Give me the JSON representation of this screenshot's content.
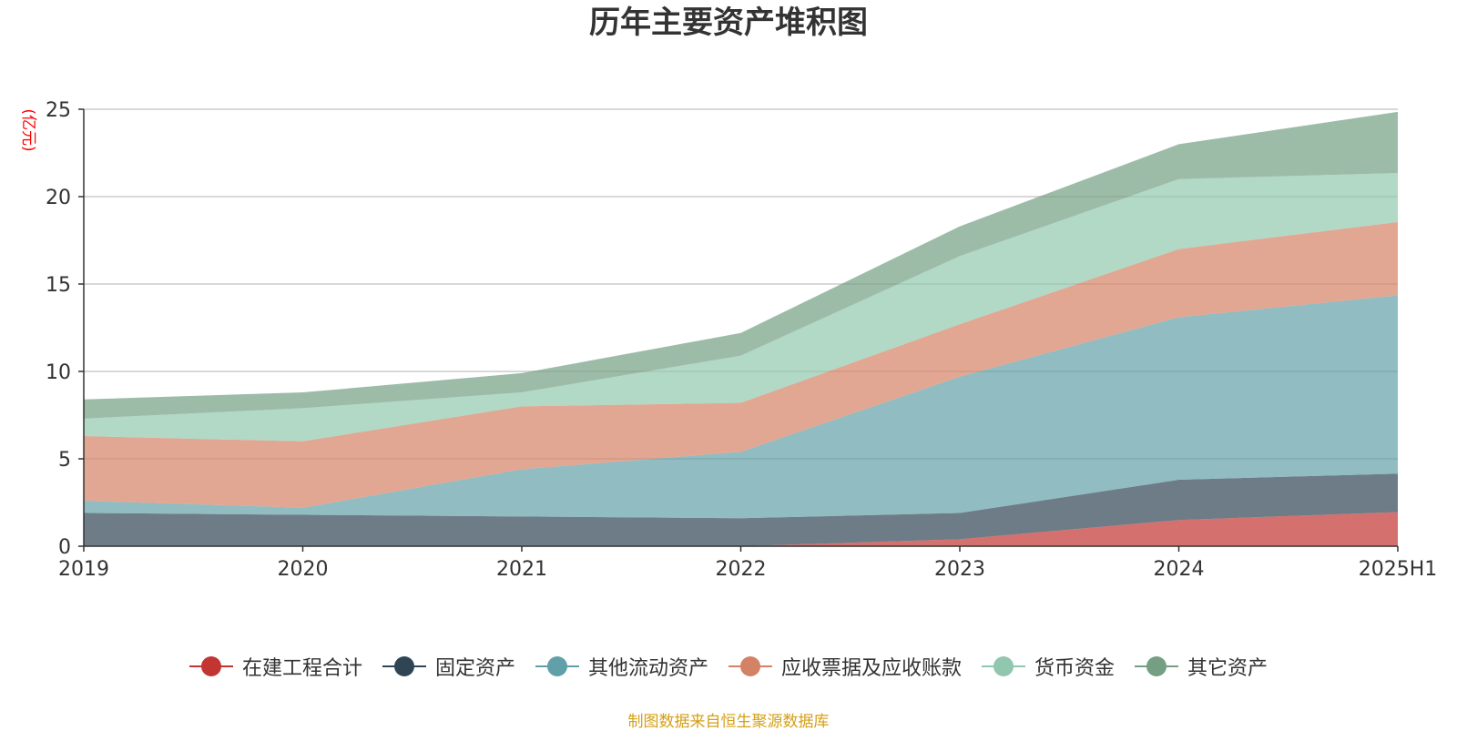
{
  "chart_data": {
    "type": "area",
    "title": "历年主要资产堆积图",
    "ylabel": "(亿元)",
    "xlabel": "",
    "categories": [
      "2019",
      "2020",
      "2021",
      "2022",
      "2023",
      "2024",
      "2025H1"
    ],
    "ylim": [
      0,
      25
    ],
    "yticks": [
      0,
      5,
      10,
      15,
      20,
      25
    ],
    "stacked": true,
    "grid": true,
    "legend_position": "bottom",
    "series": [
      {
        "name": "在建工程合计",
        "color": "#c23531",
        "values": [
          0,
          0,
          0,
          0,
          0.4,
          1.5,
          1.95
        ]
      },
      {
        "name": "固定资产",
        "color": "#2f4554",
        "values": [
          1.9,
          1.8,
          1.7,
          1.6,
          1.5,
          2.3,
          2.2
        ]
      },
      {
        "name": "其他流动资产",
        "color": "#61a0a8",
        "values": [
          0.7,
          0.4,
          2.7,
          3.8,
          7.8,
          9.3,
          10.2
        ]
      },
      {
        "name": "应收票据及应收账款",
        "color": "#d48265",
        "values": [
          3.7,
          3.8,
          3.6,
          2.8,
          3.0,
          3.9,
          4.2
        ]
      },
      {
        "name": "货币资金",
        "color": "#91c7ae",
        "values": [
          1.0,
          1.9,
          0.8,
          2.7,
          3.9,
          4.0,
          2.8
        ]
      },
      {
        "name": "其它资产",
        "color": "#749f83",
        "values": [
          1.1,
          0.9,
          1.1,
          1.3,
          1.7,
          2.0,
          3.5
        ]
      }
    ]
  },
  "source_note": "制图数据来自恒生聚源数据库"
}
